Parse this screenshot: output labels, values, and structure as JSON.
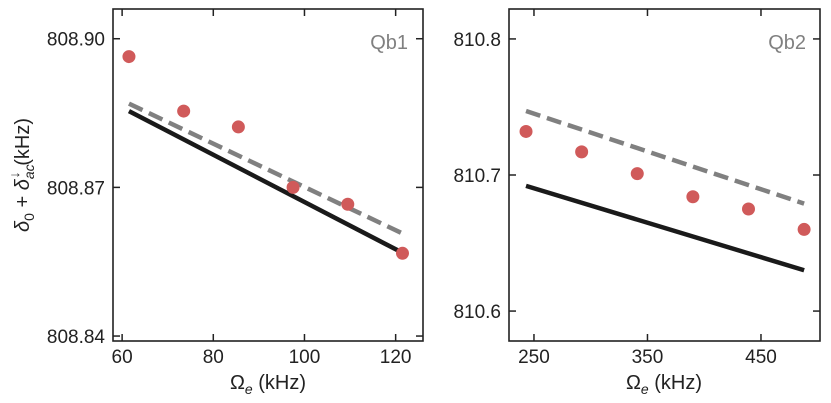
{
  "chart_data": [
    {
      "type": "scatter",
      "panel_label": "Qb1",
      "xlabel": "Ω",
      "xlabel_sub": "e",
      "xlabel_unit": " (kHz)",
      "ylabel": "δ0 + δac↓ (kHz)",
      "xlim": [
        58,
        126
      ],
      "ylim": [
        808.839,
        808.906
      ],
      "xticks": [
        60,
        80,
        100,
        120
      ],
      "xtick_labels": [
        "60",
        "80",
        "100",
        "120"
      ],
      "yticks": [
        808.84,
        808.87,
        808.9
      ],
      "ytick_labels": [
        "808.84",
        "808.87",
        "808.90"
      ],
      "points": {
        "x": [
          61.5,
          73.5,
          85.5,
          97.5,
          109.5,
          121.5
        ],
        "y": [
          808.8964,
          808.8854,
          808.8822,
          808.87,
          808.8666,
          808.8567
        ],
        "color": "#d05a5a"
      },
      "lines": [
        {
          "style": "solid",
          "color": "#1a1a1a",
          "x": [
            61.5,
            121.5
          ],
          "y": [
            808.8854,
            808.8568
          ]
        },
        {
          "style": "dashed",
          "color": "#808080",
          "x": [
            61.5,
            121.5
          ],
          "y": [
            808.8869,
            808.8607
          ]
        }
      ]
    },
    {
      "type": "scatter",
      "panel_label": "Qb2",
      "xlabel": "Ω",
      "xlabel_sub": "e",
      "xlabel_unit": " (kHz)",
      "xlim": [
        228,
        502
      ],
      "ylim": [
        810.578,
        810.822
      ],
      "xticks": [
        250,
        350,
        450
      ],
      "xtick_labels": [
        "250",
        "350",
        "450"
      ],
      "yticks": [
        810.6,
        810.7,
        810.8
      ],
      "ytick_labels": [
        "810.6",
        "810.7",
        "810.8"
      ],
      "points": {
        "x": [
          243,
          292,
          341,
          390,
          439,
          488
        ],
        "y": [
          810.732,
          810.717,
          810.701,
          810.684,
          810.675,
          810.66
        ],
        "color": "#d05a5a"
      },
      "lines": [
        {
          "style": "solid",
          "color": "#1a1a1a",
          "x": [
            243,
            488
          ],
          "y": [
            810.692,
            810.63
          ]
        },
        {
          "style": "dashed",
          "color": "#808080",
          "x": [
            243,
            488
          ],
          "y": [
            810.747,
            810.679
          ]
        }
      ]
    }
  ]
}
